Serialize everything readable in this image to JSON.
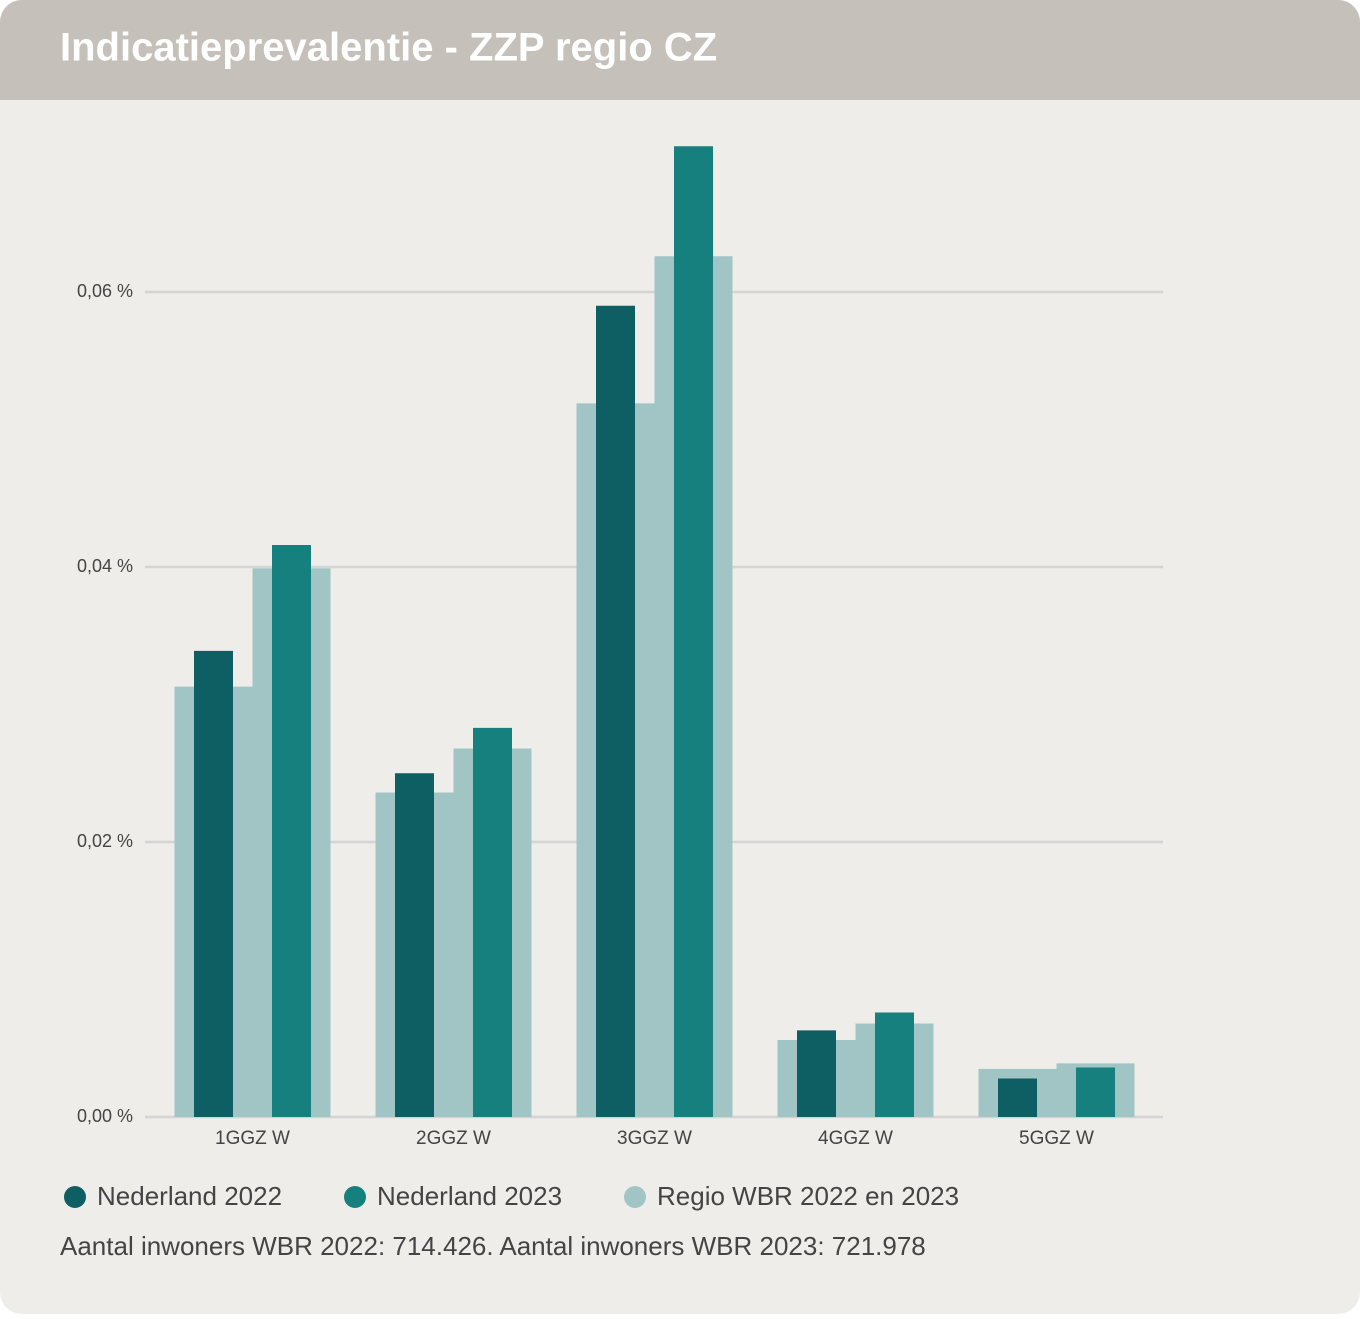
{
  "chart_data": {
    "type": "bar",
    "title": "Indicatieprevalentie - ZZP regio CZ",
    "categories": [
      "1GGZ W",
      "2GGZ W",
      "3GGZ W",
      "4GGZ W",
      "5GGZ W"
    ],
    "series": [
      {
        "name": "Nederland 2022",
        "color": "#0e5f63",
        "values": [
          0.0339,
          0.025,
          0.059,
          0.0063,
          0.0028
        ]
      },
      {
        "name": "Nederland 2023",
        "color": "#16807f",
        "values": [
          0.0416,
          0.0283,
          0.0706,
          0.0076,
          0.0036
        ]
      },
      {
        "name": "Regio WBR 2022 en 2023",
        "color": "#a1c5c5",
        "values": [
          [
            0.0313,
            0.0399
          ],
          [
            0.0236,
            0.0268
          ],
          [
            0.0519,
            0.0626
          ],
          [
            0.0056,
            0.0068
          ],
          [
            0.0035,
            0.0039
          ]
        ]
      }
    ],
    "ylim": [
      0,
      0.072
    ],
    "yticks": [
      {
        "value": 0,
        "label": "0,00 %"
      },
      {
        "value": 0.02,
        "label": "0,02 %"
      },
      {
        "value": 0.04,
        "label": "0,04 %"
      },
      {
        "value": 0.06,
        "label": "0,06 %"
      }
    ],
    "grid": true,
    "note": "Aantal inwoners WBR 2022: 714.426. Aantal inwoners WBR 2023: 721.978"
  }
}
